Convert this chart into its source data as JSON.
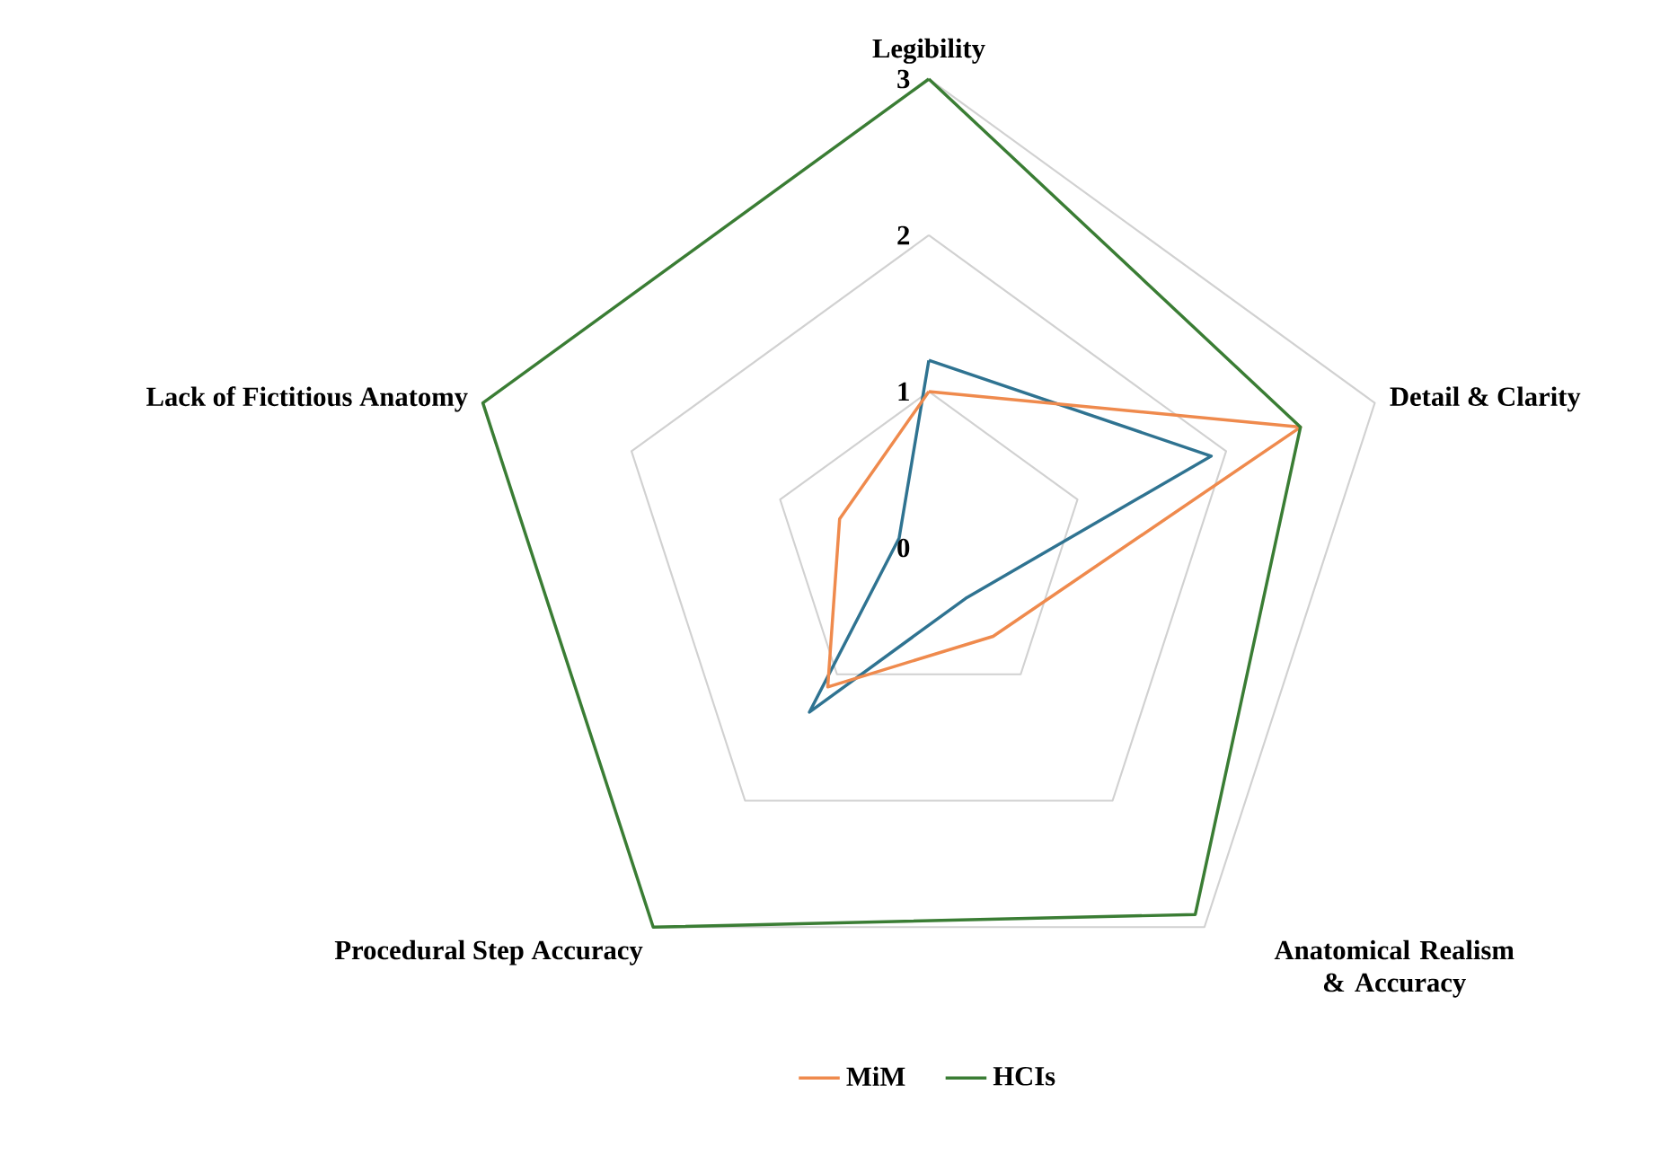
{
  "chart_data": {
    "type": "radar",
    "categories": [
      "Legibility",
      "Detail & Clarity",
      "Anatomical Realism & Accuracy",
      "Procedural Step Accuracy",
      "Lack of Fictitious Anatomy"
    ],
    "series": [
      {
        "color": "#2f7391",
        "values": [
          1.2,
          1.9,
          0.4,
          1.3,
          0.2
        ]
      },
      {
        "name": "MiM",
        "color": "#ef8a4d",
        "values": [
          1.0,
          2.5,
          0.7,
          1.1,
          0.6
        ]
      },
      {
        "name": "HCIs",
        "color": "#3a7d34",
        "values": [
          3.0,
          2.5,
          2.9,
          3.0,
          3.0
        ]
      }
    ],
    "ylim": [
      0,
      3
    ],
    "yticks": [
      0,
      1,
      2,
      3
    ],
    "grid": true,
    "legend": "bottom"
  }
}
